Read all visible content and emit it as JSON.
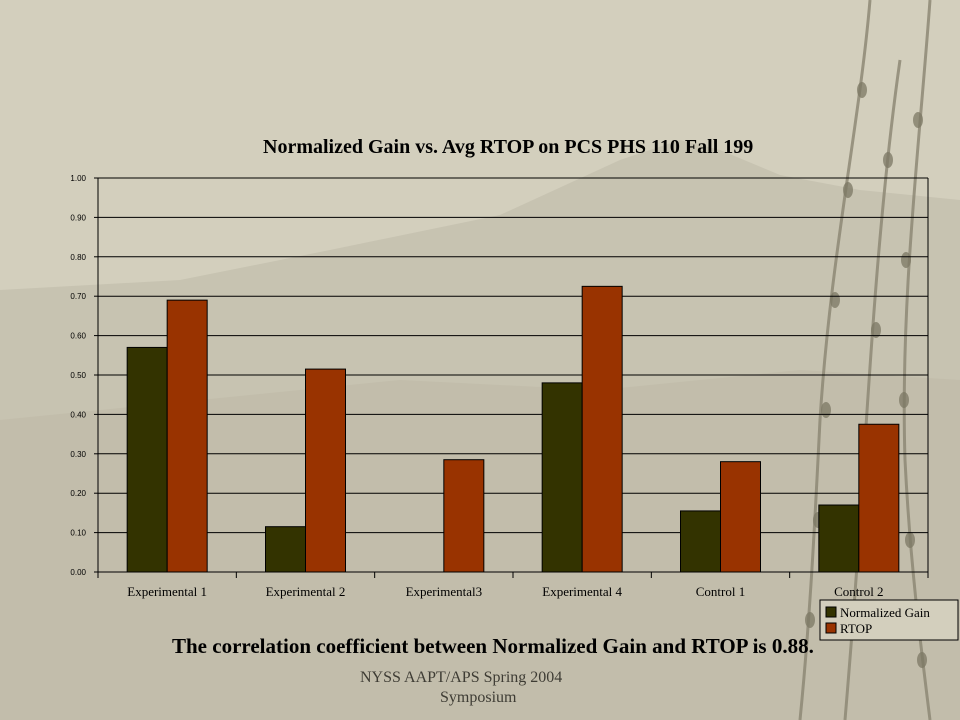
{
  "slide": {
    "correlation_note": "The correlation coefficient between Normalized Gain and RTOP is 0.88.",
    "footer_line1": "NYSS AAPT/APS Spring 2004",
    "footer_line2": "Symposium",
    "background_color": "#d3cfbd"
  },
  "chart_data": {
    "type": "bar",
    "title": "Normalized Gain vs. Avg RTOP on PCS PHS 110 Fall 199",
    "categories": [
      "Experimental 1",
      "Experimental 2",
      "Experimental3",
      "Experimental 4",
      "Control 1",
      "Control 2"
    ],
    "series": [
      {
        "name": "Normalized Gain",
        "color": "#333300",
        "values": [
          0.57,
          0.115,
          0.0,
          0.48,
          0.155,
          0.17
        ]
      },
      {
        "name": "RTOP",
        "color": "#993300",
        "values": [
          0.69,
          0.515,
          0.285,
          0.725,
          0.28,
          0.375
        ]
      }
    ],
    "yticks": [
      "0.00",
      "0.10",
      "0.20",
      "0.30",
      "0.40",
      "0.50",
      "0.60",
      "0.70",
      "0.80",
      "0.90",
      "1.00"
    ],
    "ylim": [
      0,
      1
    ],
    "grid": true,
    "legend_position": "bottom-right"
  }
}
